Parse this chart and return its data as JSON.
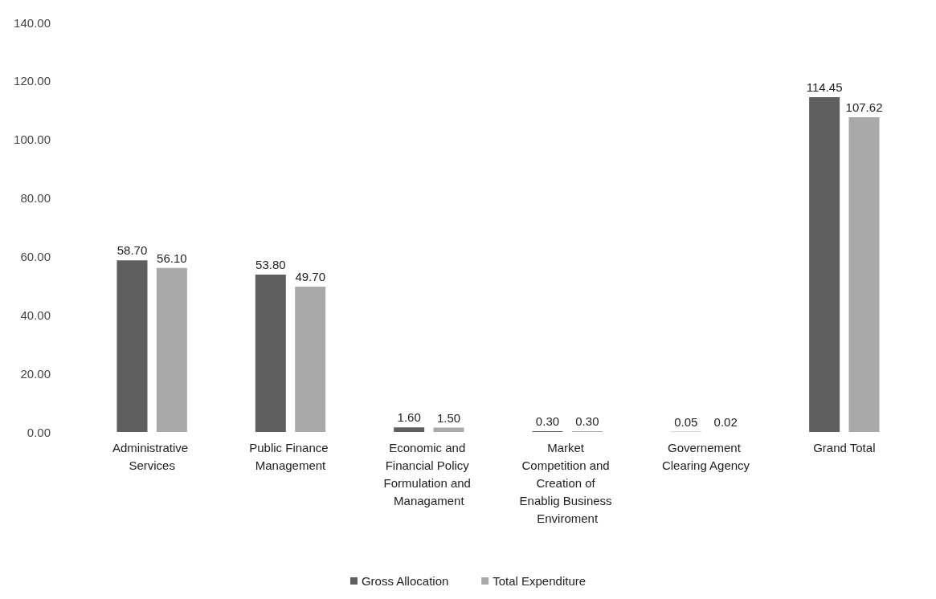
{
  "chart_data": {
    "type": "bar",
    "categories": [
      "Administrative Services",
      "Public Finance Management",
      "Economic and Financial Policy Formulation and Managament",
      "Market Competition and Creation of Enablig Business Enviroment",
      "Governement Clearing Agency",
      "Grand Total"
    ],
    "series": [
      {
        "name": "Gross Allocation",
        "color": "#5f5f5f",
        "values": [
          58.7,
          53.8,
          1.6,
          0.3,
          0.05,
          114.45
        ],
        "value_labels": [
          "58.70",
          "53.80",
          "1.60",
          "0.30",
          "0.05",
          "114.45"
        ]
      },
      {
        "name": "Total Expenditure",
        "color": "#a9a9a9",
        "values": [
          56.1,
          49.7,
          1.5,
          0.3,
          0.02,
          107.62
        ],
        "value_labels": [
          "56.10",
          "49.70",
          "1.50",
          "0.30",
          "0.02",
          "107.62"
        ]
      }
    ],
    "ylim": [
      0,
      140
    ],
    "yticks": [
      {
        "value": 0,
        "label": "0.00"
      },
      {
        "value": 20,
        "label": "20.00"
      },
      {
        "value": 40,
        "label": "40.00"
      },
      {
        "value": 60,
        "label": "60.00"
      },
      {
        "value": 80,
        "label": "80.00"
      },
      {
        "value": 100,
        "label": "100.00"
      },
      {
        "value": 120,
        "label": "120.00"
      },
      {
        "value": 140,
        "label": "140.00"
      }
    ],
    "grid": false,
    "legend": "bottom"
  }
}
